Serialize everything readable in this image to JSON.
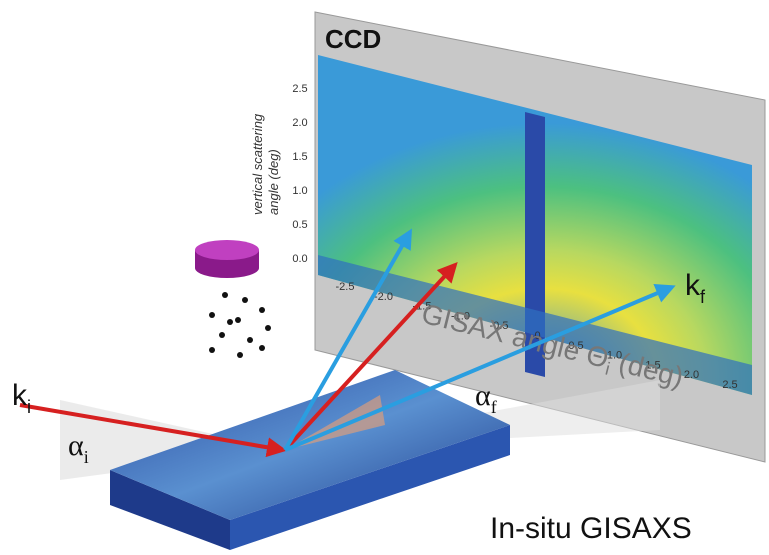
{
  "panel": {
    "title": "CCD",
    "y_axis": {
      "label_line1": "vertical scattering",
      "label_line2": "angle (deg)",
      "ticks": [
        "2.5",
        "2.0",
        "1.5",
        "1.0",
        "0.5",
        "0.0"
      ]
    },
    "x_axis": {
      "label_main": "GISAX angle Θ",
      "label_sub": "i",
      "label_end": " (deg)",
      "ticks": [
        "-2.5",
        "-2.0",
        "-1.5",
        "-1.0",
        "-0.5",
        "0",
        "0.5",
        "1.0",
        "1.5",
        "2.0",
        "2.5"
      ]
    }
  },
  "labels": {
    "k_in": "k",
    "k_in_sub": "i",
    "k_out": "k",
    "k_out_sub": "f",
    "alpha_in": "α",
    "alpha_in_sub": "i",
    "alpha_out": "α",
    "alpha_out_sub": "f"
  },
  "caption": "In-situ GISAXS"
}
